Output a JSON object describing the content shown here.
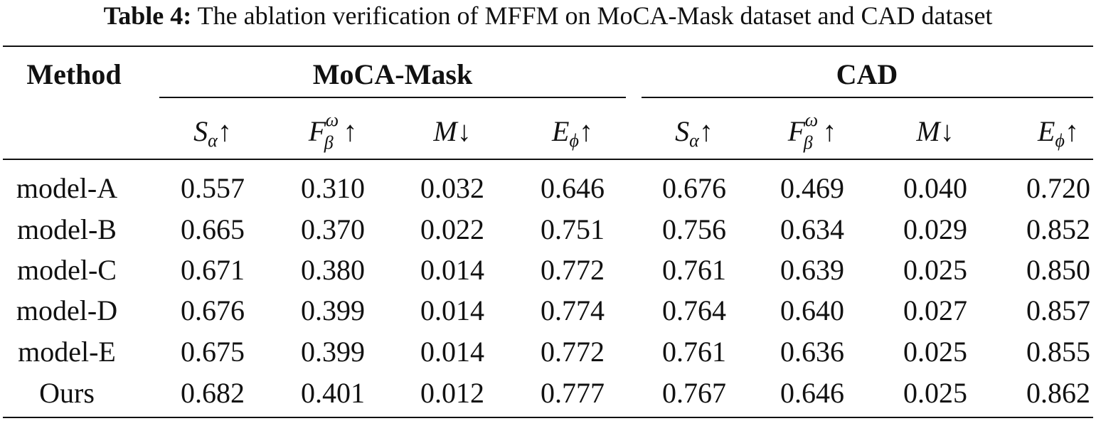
{
  "caption": {
    "label": "Table 4:",
    "text": "The ablation verification of MFFM on MoCA-Mask dataset and CAD dataset"
  },
  "header": {
    "method": "Method",
    "groups": [
      "MoCA-Mask",
      "CAD"
    ],
    "metrics": [
      {
        "sym": "S",
        "sub": "α",
        "sup": "",
        "arrow": "↑"
      },
      {
        "sym": "F",
        "sub": "β",
        "sup": "ω",
        "arrow": "↑"
      },
      {
        "sym": "M",
        "sub": "",
        "sup": "",
        "arrow": "↓"
      },
      {
        "sym": "E",
        "sub": "ϕ",
        "sup": "",
        "arrow": "↑"
      },
      {
        "sym": "S",
        "sub": "α",
        "sup": "",
        "arrow": "↑"
      },
      {
        "sym": "F",
        "sub": "β",
        "sup": "ω",
        "arrow": "↑"
      },
      {
        "sym": "M",
        "sub": "",
        "sup": "",
        "arrow": "↓"
      },
      {
        "sym": "E",
        "sub": "ϕ",
        "sup": "",
        "arrow": "↑"
      }
    ]
  },
  "rows": [
    {
      "method": "model-A",
      "values": [
        "0.557",
        "0.310",
        "0.032",
        "0.646",
        "0.676",
        "0.469",
        "0.040",
        "0.720"
      ]
    },
    {
      "method": "model-B",
      "values": [
        "0.665",
        "0.370",
        "0.022",
        "0.751",
        "0.756",
        "0.634",
        "0.029",
        "0.852"
      ]
    },
    {
      "method": "model-C",
      "values": [
        "0.671",
        "0.380",
        "0.014",
        "0.772",
        "0.761",
        "0.639",
        "0.025",
        "0.850"
      ]
    },
    {
      "method": "model-D",
      "values": [
        "0.676",
        "0.399",
        "0.014",
        "0.774",
        "0.764",
        "0.640",
        "0.027",
        "0.857"
      ]
    },
    {
      "method": "model-E",
      "values": [
        "0.675",
        "0.399",
        "0.014",
        "0.772",
        "0.761",
        "0.636",
        "0.025",
        "0.855"
      ]
    },
    {
      "method": "Ours",
      "values": [
        "0.682",
        "0.401",
        "0.012",
        "0.777",
        "0.767",
        "0.646",
        "0.025",
        "0.862"
      ]
    }
  ]
}
